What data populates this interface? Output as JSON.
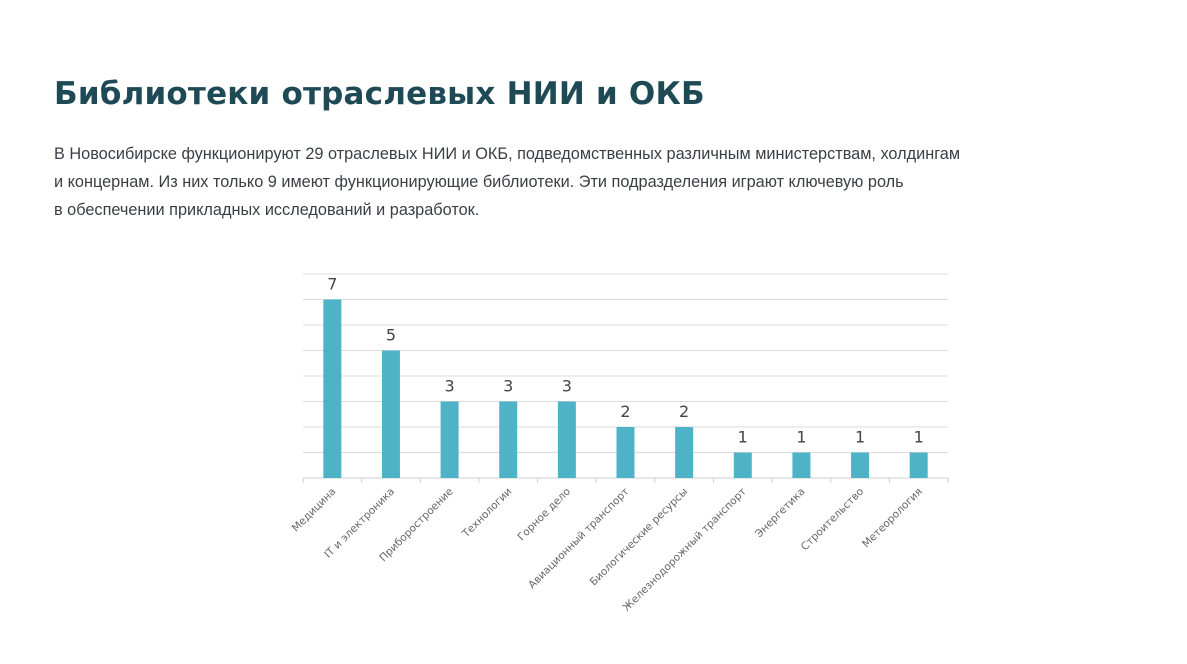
{
  "header": {
    "title": "Библиотеки отраслевых НИИ и ОКБ",
    "description_lines": [
      "В Новосибирске функционируют 29 отраслевых НИИ и ОКБ, подведомственных различным министерствам, холдингам",
      "и концернам. Из них только 9 имеют функционирующие библиотеки. Эти подразделения играют ключевую роль",
      "в обеспечении прикладных исследований и разработок."
    ]
  },
  "chart_data": {
    "type": "bar",
    "title": "",
    "xlabel": "",
    "ylabel": "",
    "categories": [
      "Медицина",
      "IT и электроника",
      "Приборостроение",
      "Технологии",
      "Горное дело",
      "Авиационный транспорт",
      "Биологические ресурсы",
      "Железнодорожный транспорт",
      "Энергетика",
      "Строительство",
      "Метеорология"
    ],
    "values": [
      7,
      5,
      3,
      3,
      3,
      2,
      2,
      1,
      1,
      1,
      1
    ],
    "ylim": [
      0,
      8
    ],
    "grid": true,
    "data_labels": true,
    "bar_color": "#4fb3c8"
  }
}
